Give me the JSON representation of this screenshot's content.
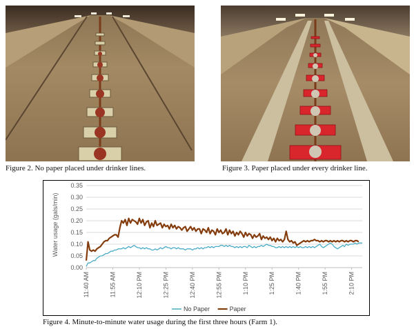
{
  "captions": {
    "fig2": "Figure 2.  No paper placed under drinker lines.",
    "fig3": "Figure 3.  Paper placed under every drinker line.",
    "fig4": "Figure 4.  Minute-to-minute water usage during the first three hours (Farm 1)."
  },
  "photos": {
    "left": {
      "paper_color": "#e8dcb0"
    },
    "right": {
      "paper_color": "#d8262c"
    }
  },
  "chart_data": {
    "type": "line",
    "title": "",
    "xlabel": "",
    "ylabel": "Water usage (gals/min)",
    "ylim": [
      0,
      0.35
    ],
    "yticks": [
      "0.00",
      "0.05",
      "0.10",
      "0.15",
      "0.20",
      "0.25",
      "0.30",
      "0.35"
    ],
    "xticks": [
      "11:40 AM",
      "11:55 AM",
      "12:10 PM",
      "12:25 PM",
      "12:40 PM",
      "12:55 PM",
      "1:10 PM",
      "1:25 PM",
      "1:40 PM",
      "1:55 PM",
      "2:10 PM"
    ],
    "xtick_minutes": [
      0,
      15,
      30,
      45,
      60,
      75,
      90,
      105,
      120,
      135,
      150
    ],
    "x_start_minute": 0,
    "grid": true,
    "legend_position": "bottom",
    "series": [
      {
        "name": "No Paper",
        "color": "#4bacc6",
        "values": [
          0.005,
          0.02,
          0.02,
          0.025,
          0.03,
          0.03,
          0.04,
          0.045,
          0.05,
          0.05,
          0.055,
          0.06,
          0.06,
          0.065,
          0.07,
          0.07,
          0.075,
          0.075,
          0.08,
          0.08,
          0.08,
          0.085,
          0.08,
          0.085,
          0.09,
          0.085,
          0.09,
          0.095,
          0.09,
          0.085,
          0.085,
          0.08,
          0.085,
          0.08,
          0.085,
          0.08,
          0.08,
          0.075,
          0.075,
          0.08,
          0.075,
          0.08,
          0.085,
          0.08,
          0.085,
          0.09,
          0.085,
          0.085,
          0.08,
          0.085,
          0.085,
          0.08,
          0.085,
          0.08,
          0.08,
          0.08,
          0.075,
          0.08,
          0.08,
          0.08,
          0.075,
          0.08,
          0.08,
          0.085,
          0.08,
          0.085,
          0.08,
          0.085,
          0.085,
          0.09,
          0.085,
          0.09,
          0.085,
          0.09,
          0.09,
          0.09,
          0.095,
          0.095,
          0.09,
          0.095,
          0.09,
          0.095,
          0.09,
          0.09,
          0.085,
          0.09,
          0.085,
          0.09,
          0.085,
          0.09,
          0.09,
          0.085,
          0.095,
          0.09,
          0.085,
          0.09,
          0.085,
          0.09,
          0.09,
          0.095,
          0.09,
          0.095,
          0.1,
          0.095,
          0.095,
          0.09,
          0.09,
          0.085,
          0.085,
          0.09,
          0.085,
          0.09,
          0.085,
          0.09,
          0.085,
          0.09,
          0.085,
          0.09,
          0.085,
          0.09,
          0.085,
          0.09,
          0.085,
          0.085,
          0.09,
          0.085,
          0.09,
          0.085,
          0.09,
          0.085,
          0.09,
          0.095,
          0.1,
          0.09,
          0.085,
          0.09,
          0.095,
          0.1,
          0.105,
          0.1,
          0.09,
          0.085,
          0.08,
          0.085,
          0.09,
          0.095,
          0.09,
          0.1,
          0.095,
          0.1,
          0.1,
          0.1,
          0.105,
          0.1,
          0.105,
          0.105,
          0.105
        ]
      },
      {
        "name": "Paper",
        "color": "#843c0c",
        "values": [
          0.03,
          0.11,
          0.075,
          0.07,
          0.075,
          0.07,
          0.08,
          0.085,
          0.09,
          0.1,
          0.11,
          0.115,
          0.115,
          0.125,
          0.13,
          0.135,
          0.14,
          0.14,
          0.13,
          0.17,
          0.2,
          0.19,
          0.205,
          0.18,
          0.21,
          0.19,
          0.205,
          0.2,
          0.195,
          0.185,
          0.21,
          0.19,
          0.205,
          0.18,
          0.195,
          0.2,
          0.17,
          0.19,
          0.175,
          0.2,
          0.18,
          0.185,
          0.19,
          0.17,
          0.185,
          0.175,
          0.18,
          0.165,
          0.185,
          0.17,
          0.18,
          0.165,
          0.175,
          0.17,
          0.16,
          0.17,
          0.175,
          0.155,
          0.165,
          0.175,
          0.16,
          0.17,
          0.155,
          0.165,
          0.165,
          0.145,
          0.165,
          0.16,
          0.15,
          0.17,
          0.145,
          0.16,
          0.155,
          0.14,
          0.165,
          0.15,
          0.16,
          0.145,
          0.15,
          0.165,
          0.14,
          0.16,
          0.145,
          0.155,
          0.135,
          0.15,
          0.14,
          0.155,
          0.145,
          0.13,
          0.15,
          0.135,
          0.145,
          0.14,
          0.125,
          0.14,
          0.13,
          0.135,
          0.145,
          0.12,
          0.135,
          0.125,
          0.13,
          0.12,
          0.13,
          0.115,
          0.125,
          0.11,
          0.125,
          0.115,
          0.12,
          0.11,
          0.12,
          0.155,
          0.12,
          0.11,
          0.115,
          0.105,
          0.11,
          0.095,
          0.1,
          0.105,
          0.11,
          0.115,
          0.11,
          0.115,
          0.11,
          0.115,
          0.115,
          0.12,
          0.115,
          0.115,
          0.11,
          0.115,
          0.11,
          0.115,
          0.115,
          0.11,
          0.115,
          0.11,
          0.115,
          0.11,
          0.115,
          0.11,
          0.115,
          0.115,
          0.11,
          0.115,
          0.11,
          0.115,
          0.115,
          0.11,
          0.115,
          0.115,
          0.11
        ]
      }
    ]
  }
}
